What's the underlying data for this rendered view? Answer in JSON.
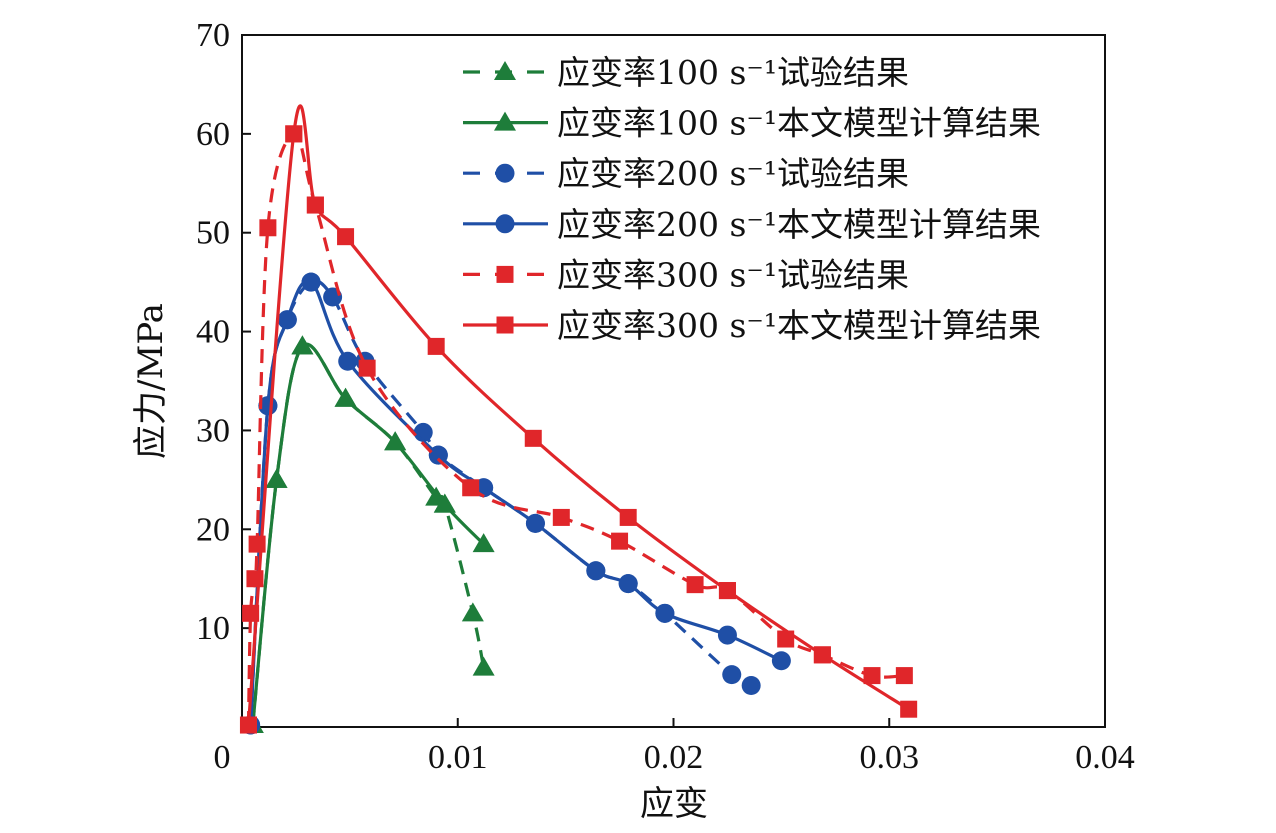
{
  "chart_data": {
    "type": "line",
    "title": "",
    "xlabel": "应变",
    "ylabel": "应力/MPa",
    "xlim": [
      0,
      0.04
    ],
    "ylim": [
      0,
      70
    ],
    "x_ticks": [
      0,
      0.01,
      0.02,
      0.03,
      0.04
    ],
    "x_tick_labels": [
      "0",
      "0.01",
      "0.02",
      "0.03",
      "0.04"
    ],
    "y_ticks": [
      10,
      20,
      30,
      40,
      50,
      60,
      70
    ],
    "y_tick_labels": [
      "10",
      "20",
      "30",
      "40",
      "50",
      "60",
      "70"
    ],
    "grid": false,
    "legend_position": "top-right",
    "series": [
      {
        "name": "应变率100 s⁻¹试验结果",
        "color": "#1e7d3a",
        "dash": "dashed",
        "marker": "triangle",
        "x": [
          0.0005,
          0.0016,
          0.0028,
          0.0048,
          0.0071,
          0.009,
          0.0094,
          0.0107,
          0.0112
        ],
        "y": [
          0.2,
          25.0,
          38.5,
          33.2,
          28.8,
          23.2,
          22.5,
          11.5,
          6.0
        ]
      },
      {
        "name": "应变率100 s⁻¹本文模型计算结果",
        "color": "#1e7d3a",
        "dash": "solid",
        "marker": "triangle",
        "x": [
          0.0005,
          0.0016,
          0.0028,
          0.0048,
          0.0071,
          0.0094,
          0.0112
        ],
        "y": [
          0.2,
          25.0,
          38.5,
          33.2,
          28.8,
          22.5,
          18.5
        ]
      },
      {
        "name": "应变率200 s⁻¹试验结果",
        "color": "#1f4fa6",
        "dash": "dashed",
        "marker": "circle",
        "x": [
          0.0004,
          0.0012,
          0.0021,
          0.0032,
          0.0042,
          0.0057,
          0.0084,
          0.0091,
          0.0112,
          0.0136,
          0.0164,
          0.0179,
          0.0196,
          0.0227,
          0.0236
        ],
        "y": [
          0.2,
          32.5,
          41.2,
          45.0,
          43.5,
          37.0,
          29.8,
          27.5,
          24.2,
          20.6,
          15.8,
          14.5,
          11.5,
          5.3,
          4.2
        ]
      },
      {
        "name": "应变率200 s⁻¹本文模型计算结果",
        "color": "#1f4fa6",
        "dash": "solid",
        "marker": "circle",
        "x": [
          0.0004,
          0.0012,
          0.0021,
          0.0032,
          0.0049,
          0.0091,
          0.0112,
          0.0136,
          0.0164,
          0.0179,
          0.0196,
          0.0225,
          0.025
        ],
        "y": [
          0.2,
          32.5,
          41.2,
          45.0,
          37.0,
          27.5,
          24.2,
          20.6,
          15.8,
          14.5,
          11.5,
          9.3,
          6.7
        ]
      },
      {
        "name": "应变率300 s⁻¹试验结果",
        "color": "#e0262a",
        "dash": "dashed",
        "marker": "square",
        "x": [
          0.0003,
          0.0004,
          0.0006,
          0.0007,
          0.0012,
          0.0024,
          0.0034,
          0.0058,
          0.0106,
          0.0148,
          0.0175,
          0.021,
          0.0225,
          0.0252,
          0.0269,
          0.0292,
          0.0307
        ],
        "y": [
          0.2,
          11.5,
          15.0,
          18.5,
          50.5,
          60.0,
          52.8,
          36.3,
          24.2,
          21.2,
          18.8,
          14.4,
          13.8,
          8.9,
          7.3,
          5.2,
          5.2
        ]
      },
      {
        "name": "应变率300 s⁻¹本文模型计算结果",
        "color": "#e0262a",
        "dash": "solid",
        "marker": "square",
        "x": [
          0.0003,
          0.0024,
          0.0034,
          0.0048,
          0.009,
          0.0135,
          0.0179,
          0.0225,
          0.0269,
          0.0309
        ],
        "y": [
          0.2,
          60.0,
          52.8,
          49.6,
          38.5,
          29.2,
          21.2,
          13.8,
          7.3,
          1.8
        ]
      }
    ]
  }
}
